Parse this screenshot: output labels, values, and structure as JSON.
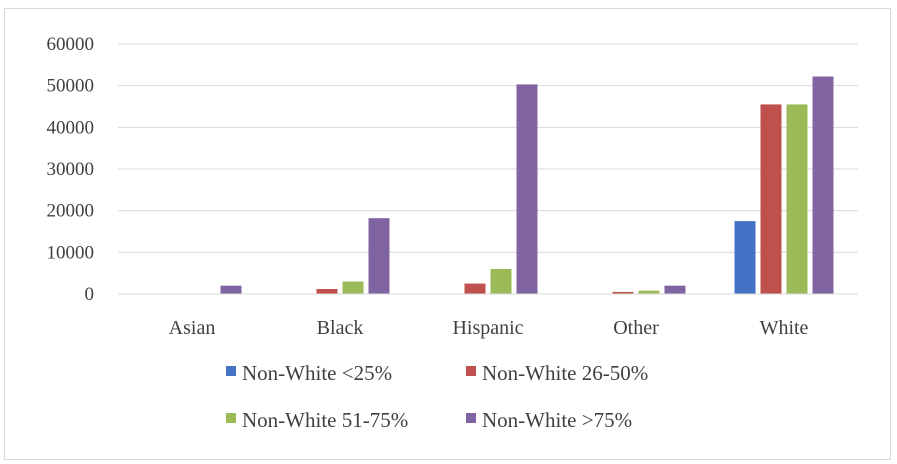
{
  "chart_data": {
    "type": "bar",
    "title": "",
    "xlabel": "",
    "ylabel": "",
    "ylim": [
      0,
      60000
    ],
    "yticks": [
      0,
      10000,
      20000,
      30000,
      40000,
      50000,
      60000
    ],
    "ytick_labels": [
      "0",
      "10000",
      "20000",
      "30000",
      "40000",
      "50000",
      "60000"
    ],
    "grid": true,
    "legend_position": "bottom",
    "categories": [
      "Asian",
      "Black",
      "Hispanic",
      "Other",
      "White"
    ],
    "series": [
      {
        "name": "Non-White <25%",
        "color": "#4472c4",
        "values": [
          0,
          0,
          0,
          0,
          17500
        ]
      },
      {
        "name": "Non-White 26-50%",
        "color": "#c0504d",
        "values": [
          0,
          1200,
          2500,
          500,
          45500
        ]
      },
      {
        "name": "Non-White 51-75%",
        "color": "#9bbb59",
        "values": [
          0,
          3000,
          6000,
          800,
          45500
        ]
      },
      {
        "name": "Non-White >75%",
        "color": "#8064a2",
        "values": [
          2000,
          18200,
          50300,
          2000,
          52200
        ]
      }
    ]
  }
}
